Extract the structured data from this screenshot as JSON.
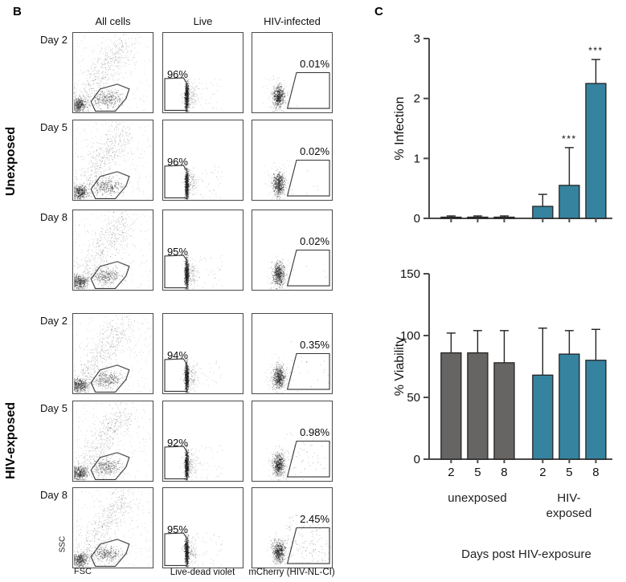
{
  "panel_b": {
    "label": "B",
    "column_headers": [
      "All cells",
      "Live",
      "HIV-infected"
    ],
    "groups": [
      {
        "name": "Unexposed",
        "rows": [
          {
            "day": "Day 2",
            "live": "96%",
            "infected": "0.01%"
          },
          {
            "day": "Day 5",
            "live": "96%",
            "infected": "0.02%"
          },
          {
            "day": "Day 8",
            "live": "95%",
            "infected": "0.02%"
          }
        ]
      },
      {
        "name": "HIV-exposed",
        "rows": [
          {
            "day": "Day 2",
            "live": "94%",
            "infected": "0.35%"
          },
          {
            "day": "Day 5",
            "live": "92%",
            "infected": "0.98%"
          },
          {
            "day": "Day 8",
            "live": "95%",
            "infected": "2.45%"
          }
        ]
      }
    ],
    "axis_labels": {
      "ssc": "SSC",
      "fsc": "FSC",
      "live_x": "Live-dead violet",
      "infected_x": "mCherry (HIV-NL-CI)"
    }
  },
  "panel_c": {
    "label": "C",
    "group_labels": {
      "unexposed": "unexposed",
      "exposed": "HIV-\nexposed"
    },
    "x_axis_title": "Days post HIV-exposure"
  },
  "colors": {
    "unexposed_bar": "#676563",
    "exposed_bar": "#36839f",
    "axis": "#4a4a4a"
  },
  "chart_data": [
    {
      "type": "bar",
      "name": "infection",
      "title": "",
      "xlabel": "",
      "ylabel": "% Infection",
      "ylim": [
        0,
        3
      ],
      "yticks": [
        0,
        1,
        2,
        3
      ],
      "categories": [
        "2",
        "5",
        "8",
        "2",
        "5",
        "8"
      ],
      "bar_groups": [
        "unexposed",
        "unexposed",
        "unexposed",
        "HIV-exposed",
        "HIV-exposed",
        "HIV-exposed"
      ],
      "values": [
        0.02,
        0.02,
        0.02,
        0.2,
        0.55,
        2.25
      ],
      "errors_upper": [
        0.02,
        0.02,
        0.02,
        0.2,
        0.63,
        0.4
      ],
      "significance": [
        "",
        "",
        "",
        "",
        "***",
        "***"
      ],
      "bar_colors": [
        "#676563",
        "#676563",
        "#676563",
        "#36839f",
        "#36839f",
        "#36839f"
      ],
      "show_x_tick_labels": false,
      "legend": "none",
      "grid": false
    },
    {
      "type": "bar",
      "name": "viability",
      "title": "",
      "xlabel": "",
      "ylabel": "% Viability",
      "ylim": [
        0,
        150
      ],
      "yticks": [
        0,
        50,
        100,
        150
      ],
      "categories": [
        "2",
        "5",
        "8",
        "2",
        "5",
        "8"
      ],
      "bar_groups": [
        "unexposed",
        "unexposed",
        "unexposed",
        "HIV-exposed",
        "HIV-exposed",
        "HIV-exposed"
      ],
      "values": [
        86,
        86,
        78,
        68,
        85,
        80
      ],
      "errors_upper": [
        16,
        18,
        26,
        38,
        19,
        25
      ],
      "significance": [
        "",
        "",
        "",
        "",
        "",
        ""
      ],
      "bar_colors": [
        "#676563",
        "#676563",
        "#676563",
        "#36839f",
        "#36839f",
        "#36839f"
      ],
      "show_x_tick_labels": true,
      "legend": "none",
      "grid": false
    }
  ]
}
